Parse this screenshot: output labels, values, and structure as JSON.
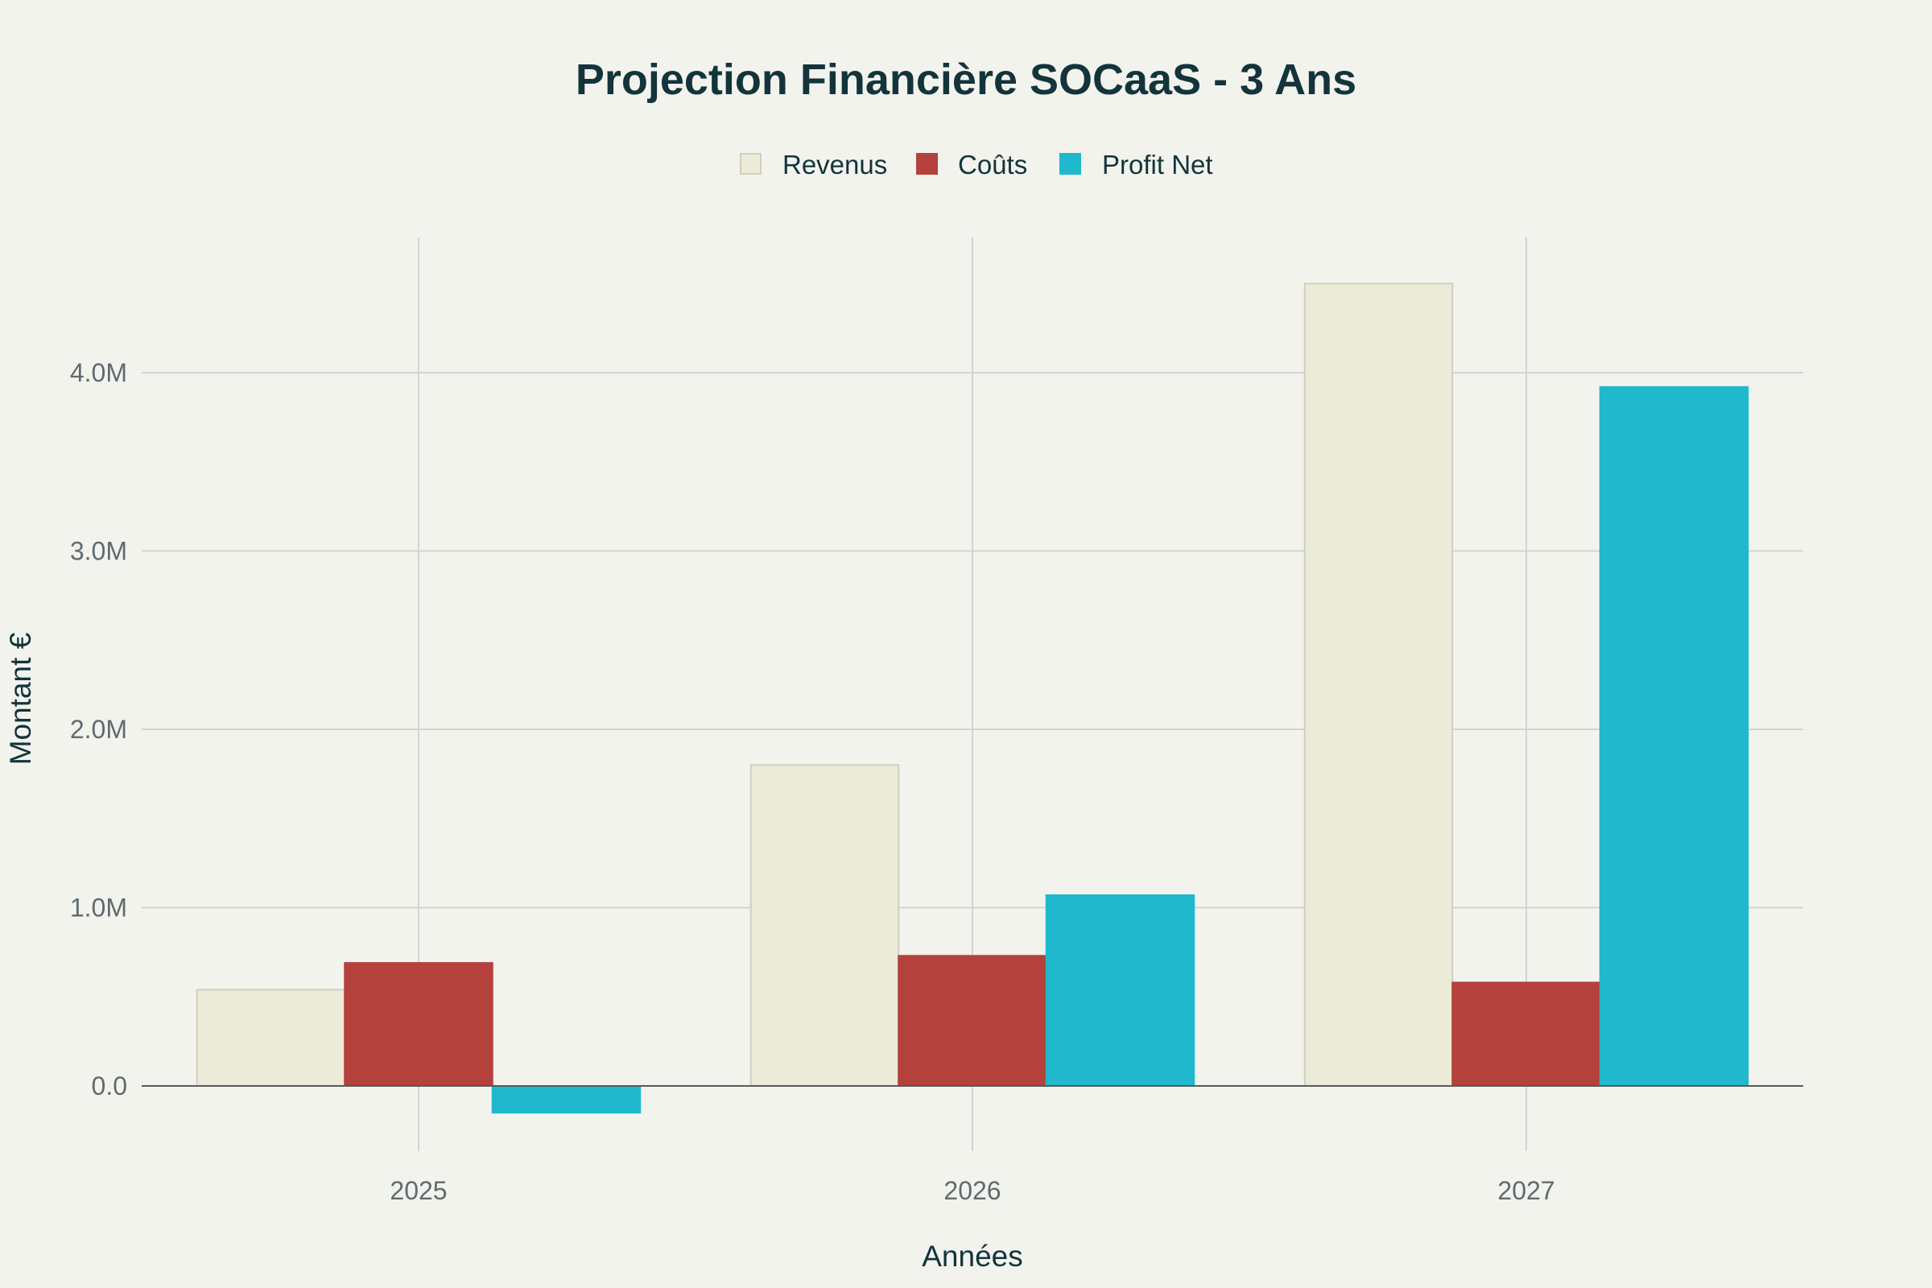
{
  "chart_data": {
    "type": "bar",
    "title": "Projection Financière SOCaaS - 3 Ans",
    "xlabel": "Années",
    "ylabel": "Montant €",
    "categories": [
      "2025",
      "2026",
      "2027"
    ],
    "series": [
      {
        "name": "Revenus",
        "values": [
          540000,
          1800000,
          4500000
        ],
        "color": "#ecebd7",
        "stroke": "#d0cfbd"
      },
      {
        "name": "Coûts",
        "values": [
          690000,
          730000,
          580000
        ],
        "color": "#b4413c",
        "stroke": "#b4413c"
      },
      {
        "name": "Profit Net",
        "values": [
          -150000,
          1070000,
          3920000
        ],
        "color": "#1fb8cd",
        "stroke": "#1fb8cd"
      }
    ],
    "ylim": [
      -400000,
      4750000
    ],
    "yticks": [
      0,
      1000000,
      2000000,
      3000000,
      4000000
    ],
    "ytick_labels": [
      "0.0",
      "1.0M",
      "2.0M",
      "3.0M",
      "4.0M"
    ],
    "grid": true,
    "legend_position": "top-center"
  }
}
